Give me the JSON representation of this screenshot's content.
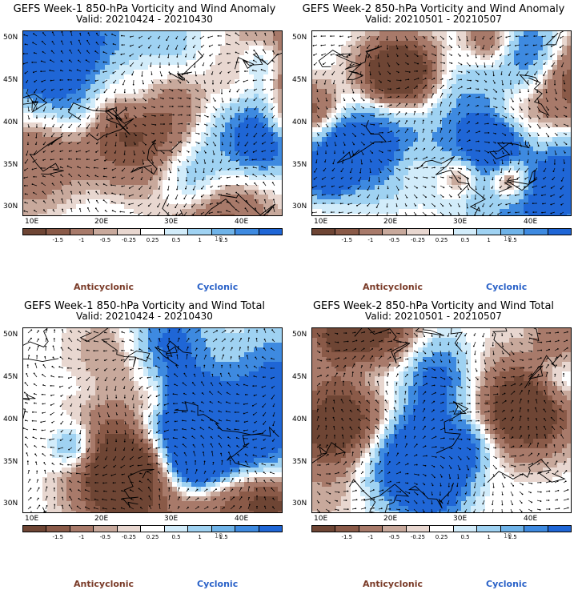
{
  "panels": [
    {
      "id": "p1",
      "title": "GEFS Week-1 850-hPa Vorticity and Wind Anomaly",
      "valid": "Valid: 20210424 - 20210430",
      "seed": 11
    },
    {
      "id": "p2",
      "title": "GEFS Week-2 850-hPa Vorticity and Wind Anomaly",
      "valid": "Valid: 20210501 - 20210507",
      "seed": 23
    },
    {
      "id": "p3",
      "title": "GEFS Week-1 850-hPa Vorticity and Wind Total",
      "valid": "Valid: 20210424 - 20210430",
      "seed": 37
    },
    {
      "id": "p4",
      "title": "GEFS Week-2 850-hPa Vorticity and Wind Total",
      "valid": "Valid: 20210501 - 20210507",
      "seed": 51
    }
  ],
  "axes": {
    "lat_labels": [
      "50N",
      "45N",
      "40N",
      "35N",
      "30N"
    ],
    "lon_labels": [
      "10E",
      "20E",
      "30E",
      "40E"
    ]
  },
  "colorbar": {
    "ticks": [
      "-1.5",
      "-1",
      "-0.5",
      "-0.25",
      "0.25",
      "0.5",
      "1",
      "1.5"
    ],
    "unit_label": "10",
    "colors": [
      "#6e4534",
      "#8a5a48",
      "#a87a6a",
      "#c8a99c",
      "#e8d7d0",
      "#ffffff",
      "#d2ecfa",
      "#9fd2f2",
      "#6fb3e8",
      "#3e8ae0",
      "#1f66d6"
    ]
  },
  "legend": {
    "anticyclonic": "Anticyclonic",
    "cyclonic": "Cyclonic"
  }
}
